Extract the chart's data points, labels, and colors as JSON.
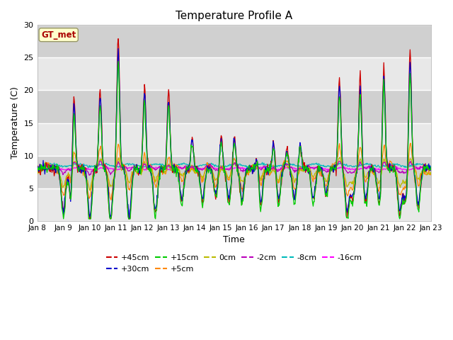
{
  "title": "Temperature Profile A",
  "xlabel": "Time",
  "ylabel": "Temperature (C)",
  "ylim": [
    0,
    30
  ],
  "annotation": "GT_met",
  "legend_entries": [
    {
      "label": "+45cm",
      "color": "#cc0000"
    },
    {
      "label": "+30cm",
      "color": "#0000cc"
    },
    {
      "label": "+15cm",
      "color": "#00cc00"
    },
    {
      "label": "+5cm",
      "color": "#ff8800"
    },
    {
      "label": "0cm",
      "color": "#bbbb00"
    },
    {
      "label": "-2cm",
      "color": "#bb00bb"
    },
    {
      "label": "-8cm",
      "color": "#00bbbb"
    },
    {
      "label": "-16cm",
      "color": "#ff00ff"
    }
  ],
  "xtick_labels": [
    "Jan 8",
    "Jan 9",
    "Jan 10",
    "Jan 11",
    "Jan 12",
    "Jan 13",
    "Jan 14",
    "Jan 15",
    "Jan 16",
    "Jan 17",
    "Jan 18",
    "Jan 19",
    "Jan 20",
    "Jan 21",
    "Jan 22",
    "Jan 23"
  ],
  "band_colors": [
    "#e8e8e8",
    "#d8d8d8"
  ],
  "figure_bg": "#ffffff",
  "title_fontsize": 11,
  "axis_fontsize": 9,
  "tick_fontsize": 7.5
}
